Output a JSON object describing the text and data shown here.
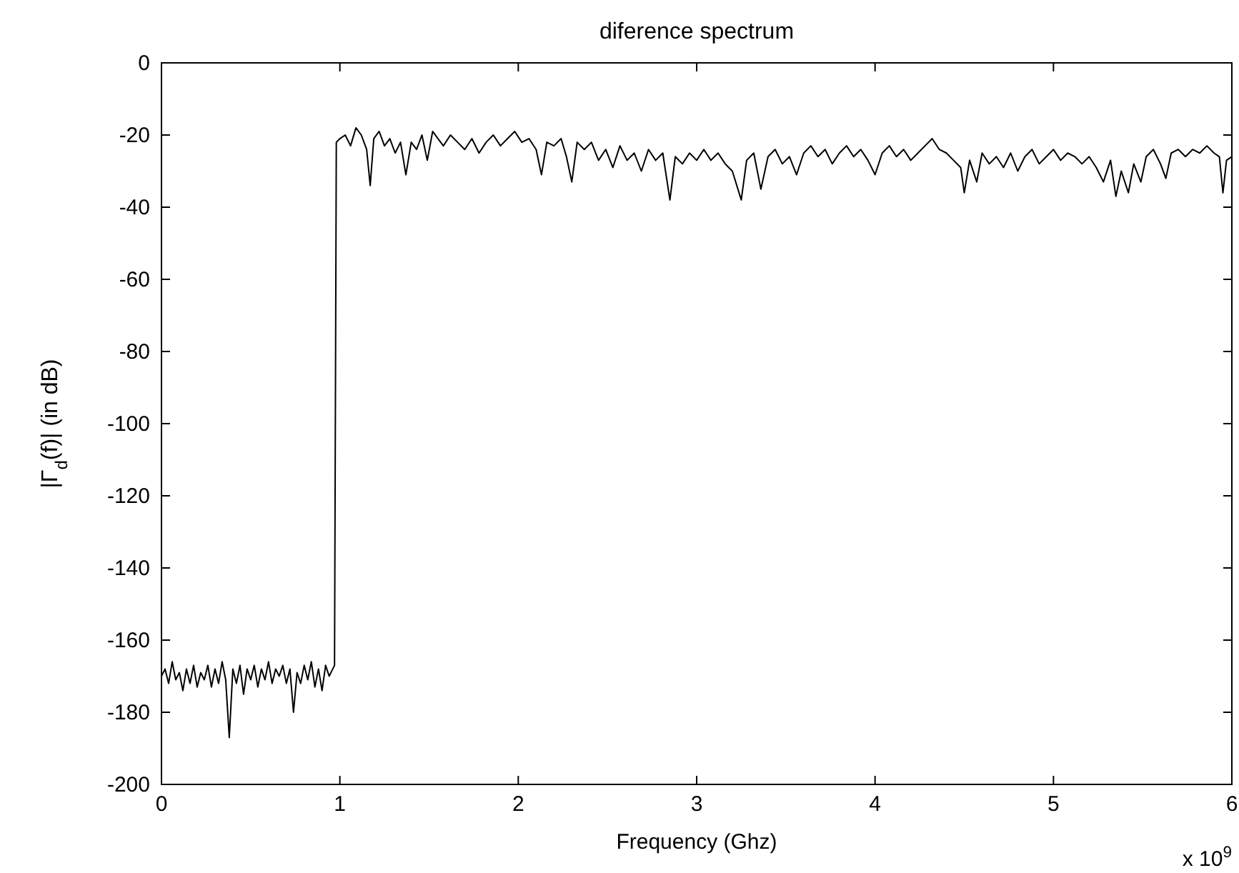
{
  "chart_data": {
    "type": "line",
    "title": "diference spectrum",
    "xlabel": "Frequency (Ghz)",
    "ylabel": "|Γ$_{d}$(f)| (in dB)",
    "annotations": [
      "x 10$^{9}$"
    ],
    "xlim": [
      0,
      6
    ],
    "xticks": [
      0,
      1,
      2,
      3,
      4,
      5,
      6
    ],
    "ylim": [
      -200,
      0
    ],
    "yticks": [
      -200,
      -180,
      -160,
      -140,
      -120,
      -100,
      -80,
      -60,
      -40,
      -20,
      0
    ],
    "grid": false,
    "marker": "none",
    "line_style": "solid",
    "series": [
      {
        "color": "#000000",
        "x": [
          0,
          0.02,
          0.04,
          0.06,
          0.08,
          0.1,
          0.12,
          0.14,
          0.16,
          0.18,
          0.2,
          0.22,
          0.24,
          0.26,
          0.28,
          0.3,
          0.32,
          0.34,
          0.36,
          0.38,
          0.4,
          0.42,
          0.44,
          0.46,
          0.48,
          0.5,
          0.52,
          0.54,
          0.56,
          0.58,
          0.6,
          0.62,
          0.64,
          0.66,
          0.68,
          0.7,
          0.72,
          0.74,
          0.76,
          0.78,
          0.8,
          0.82,
          0.84,
          0.86,
          0.88,
          0.9,
          0.92,
          0.94,
          0.96,
          0.97,
          0.98,
          1.0,
          1.03,
          1.06,
          1.09,
          1.12,
          1.15,
          1.17,
          1.19,
          1.22,
          1.25,
          1.28,
          1.31,
          1.34,
          1.37,
          1.4,
          1.43,
          1.46,
          1.49,
          1.52,
          1.55,
          1.58,
          1.62,
          1.66,
          1.7,
          1.74,
          1.78,
          1.82,
          1.86,
          1.9,
          1.94,
          1.98,
          2.02,
          2.06,
          2.1,
          2.13,
          2.16,
          2.2,
          2.24,
          2.27,
          2.3,
          2.33,
          2.37,
          2.41,
          2.45,
          2.49,
          2.53,
          2.57,
          2.61,
          2.65,
          2.69,
          2.73,
          2.77,
          2.81,
          2.85,
          2.88,
          2.92,
          2.96,
          3.0,
          3.04,
          3.08,
          3.12,
          3.16,
          3.2,
          3.25,
          3.28,
          3.32,
          3.36,
          3.4,
          3.44,
          3.48,
          3.52,
          3.56,
          3.6,
          3.64,
          3.68,
          3.72,
          3.76,
          3.8,
          3.84,
          3.88,
          3.92,
          3.96,
          4.0,
          4.04,
          4.08,
          4.12,
          4.16,
          4.2,
          4.24,
          4.28,
          4.32,
          4.36,
          4.4,
          4.44,
          4.48,
          4.5,
          4.53,
          4.57,
          4.6,
          4.64,
          4.68,
          4.72,
          4.76,
          4.8,
          4.84,
          4.88,
          4.92,
          4.96,
          5.0,
          5.04,
          5.08,
          5.12,
          5.16,
          5.2,
          5.24,
          5.28,
          5.32,
          5.35,
          5.38,
          5.42,
          5.45,
          5.49,
          5.52,
          5.56,
          5.6,
          5.63,
          5.66,
          5.7,
          5.74,
          5.78,
          5.82,
          5.86,
          5.9,
          5.93,
          5.95,
          5.97,
          6.0
        ],
        "values": [
          -170,
          -168,
          -172,
          -166,
          -171,
          -169,
          -174,
          -168,
          -172,
          -167,
          -173,
          -169,
          -171,
          -167,
          -173,
          -168,
          -172,
          -166,
          -171,
          -187,
          -168,
          -172,
          -167,
          -175,
          -168,
          -171,
          -167,
          -173,
          -168,
          -171,
          -166,
          -172,
          -168,
          -170,
          -167,
          -172,
          -168,
          -180,
          -169,
          -172,
          -167,
          -171,
          -166,
          -173,
          -168,
          -174,
          -167,
          -170,
          -168,
          -167,
          -22,
          -21,
          -20,
          -23,
          -18,
          -20,
          -24,
          -34,
          -21,
          -19,
          -23,
          -21,
          -25,
          -22,
          -31,
          -22,
          -24,
          -20,
          -27,
          -19,
          -21,
          -23,
          -20,
          -22,
          -24,
          -21,
          -25,
          -22,
          -20,
          -23,
          -21,
          -19,
          -22,
          -21,
          -24,
          -31,
          -22,
          -23,
          -21,
          -26,
          -33,
          -22,
          -24,
          -22,
          -27,
          -24,
          -29,
          -23,
          -27,
          -25,
          -30,
          -24,
          -27,
          -25,
          -38,
          -26,
          -28,
          -25,
          -27,
          -24,
          -27,
          -25,
          -28,
          -30,
          -38,
          -27,
          -25,
          -35,
          -26,
          -24,
          -28,
          -26,
          -31,
          -25,
          -23,
          -26,
          -24,
          -28,
          -25,
          -23,
          -26,
          -24,
          -27,
          -31,
          -25,
          -23,
          -26,
          -24,
          -27,
          -25,
          -23,
          -21,
          -24,
          -25,
          -27,
          -29,
          -36,
          -27,
          -33,
          -25,
          -28,
          -26,
          -29,
          -25,
          -30,
          -26,
          -24,
          -28,
          -26,
          -24,
          -27,
          -25,
          -26,
          -28,
          -26,
          -29,
          -33,
          -27,
          -37,
          -30,
          -36,
          -28,
          -33,
          -26,
          -24,
          -28,
          -32,
          -25,
          -24,
          -26,
          -24,
          -25,
          -23,
          -25,
          -26,
          -36,
          -27,
          -26
        ]
      }
    ]
  }
}
